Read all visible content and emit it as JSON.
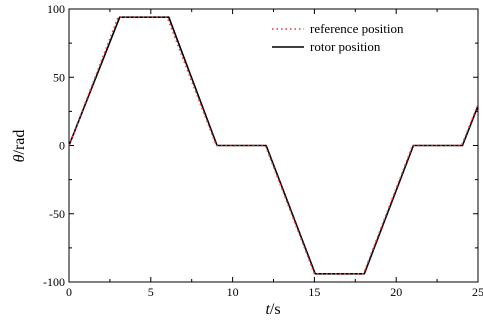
{
  "chart_data": {
    "type": "line",
    "title": "",
    "xlabel": "t/s",
    "xlabel_parts": {
      "var": "t",
      "unit": "/s"
    },
    "ylabel": "θ/rad",
    "ylabel_parts": {
      "var": "θ",
      "unit": "/rad"
    },
    "xlim": [
      0,
      25
    ],
    "ylim": [
      -100,
      100
    ],
    "xticks": [
      0,
      5,
      10,
      15,
      20,
      25
    ],
    "yticks": [
      -100,
      -50,
      0,
      50,
      100
    ],
    "x_tick_labels": [
      "0",
      "5",
      "10",
      "15",
      "20",
      "25"
    ],
    "y_tick_labels": [
      "-100",
      "-50",
      "0",
      "50",
      "100"
    ],
    "grid": false,
    "legend_position": "top-right",
    "series": [
      {
        "name": "reference position",
        "style": "dotted",
        "color": "#e8383d",
        "x": [
          0,
          3,
          6,
          9,
          12,
          15,
          18,
          21,
          24,
          25
        ],
        "y": [
          0,
          94,
          94,
          0,
          0,
          -94,
          -94,
          0,
          0,
          30
        ]
      },
      {
        "name": "rotor position",
        "style": "solid",
        "color": "#000000",
        "x": [
          0,
          3.1,
          6.1,
          9.05,
          12.05,
          15.05,
          18.05,
          21.05,
          24.05,
          25
        ],
        "y": [
          0,
          94,
          94,
          0,
          0,
          -94,
          -94,
          0,
          0,
          29
        ]
      }
    ]
  }
}
